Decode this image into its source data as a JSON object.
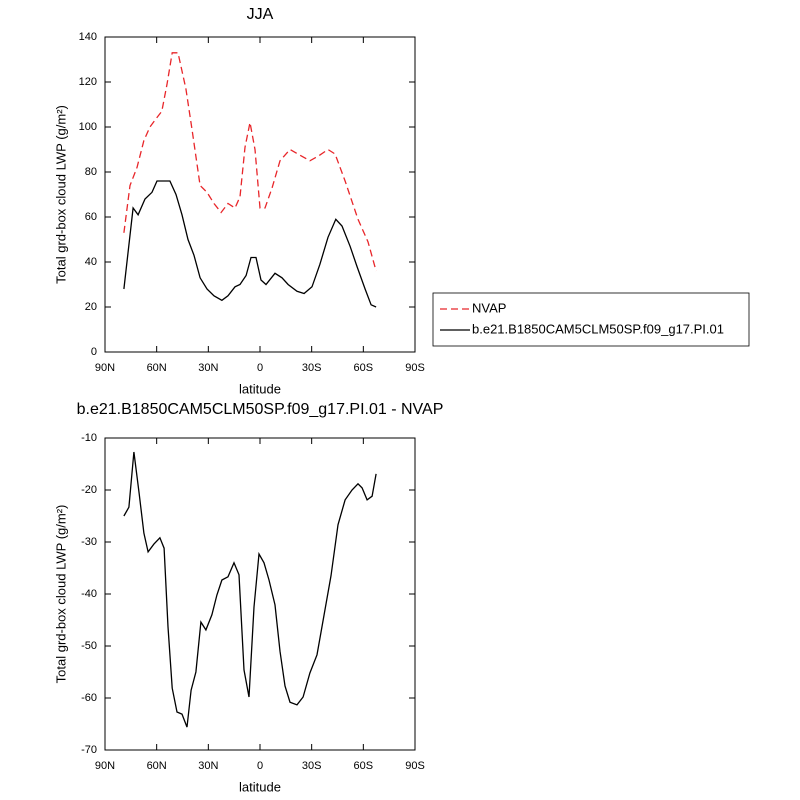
{
  "chart_data": [
    {
      "type": "line",
      "title": "JJA",
      "xlabel": "latitude",
      "ylabel": "Total grd-box cloud LWP (g/m²)",
      "xlim": [
        90,
        -90
      ],
      "xticks": [
        {
          "value": 90,
          "label": "90N"
        },
        {
          "value": 60,
          "label": "60N"
        },
        {
          "value": 30,
          "label": "30N"
        },
        0,
        {
          "value": -30,
          "label": "30S"
        },
        {
          "value": -60,
          "label": "60S"
        },
        {
          "value": -90,
          "label": "90S"
        }
      ],
      "ylim": [
        0,
        140
      ],
      "yticks": [
        0,
        20,
        40,
        60,
        80,
        100,
        120,
        140
      ],
      "legend": "outside right",
      "series": [
        {
          "name": "NVAP",
          "color": "#e8262a",
          "dashed": true,
          "x": [
            79,
            75.5,
            71.4,
            67.4,
            63.9,
            61,
            57,
            54,
            51,
            47.6,
            43,
            39.5,
            34.8,
            30.8,
            26.7,
            22.6,
            18.6,
            14.5,
            11.6,
            8.7,
            5.8,
            2.9,
            0,
            -2.9,
            -7,
            -11.6,
            -17.4,
            -22,
            -29,
            -33.7,
            -39.5,
            -43.6,
            -49.4,
            -56.9,
            -62.7,
            -67.4
          ],
          "values": [
            53,
            74,
            82,
            94,
            100,
            103,
            107,
            119,
            133,
            133,
            117,
            99,
            74,
            71,
            66,
            62,
            66,
            64,
            69,
            91,
            102,
            90,
            64,
            64,
            73,
            85,
            90,
            88,
            85,
            87,
            90,
            88,
            76,
            59,
            49,
            36
          ]
        },
        {
          "name": "b.e21.B1850CAM5CLM50SP.f09_g17.PI.01",
          "color": "#000000",
          "dashed": false,
          "x": [
            79,
            73.7,
            70.8,
            66.8,
            62.7,
            59.8,
            56.3,
            52.3,
            48.8,
            45.3,
            41.8,
            38.3,
            34.8,
            30.8,
            26.7,
            22.1,
            18.6,
            14.5,
            11.6,
            8.1,
            5.2,
            2.3,
            -0.6,
            -3.5,
            -8.7,
            -12.8,
            -16.3,
            -21.5,
            -25.6,
            -30.2,
            -34.8,
            -39.5,
            -44,
            -47.6,
            -52.3,
            -56.3,
            -61,
            -64.5,
            -67.4
          ],
          "values": [
            28,
            64,
            61,
            68,
            71,
            76,
            76,
            76,
            70,
            61,
            50,
            43,
            33,
            28,
            25,
            23,
            25,
            29,
            30,
            34,
            42,
            42,
            32,
            30,
            35,
            33,
            30,
            27,
            26,
            29,
            39,
            51,
            59,
            56,
            47,
            38,
            28,
            21,
            20
          ]
        }
      ]
    },
    {
      "type": "line",
      "title": "b.e21.B1850CAM5CLM50SP.f09_g17.PI.01 - NVAP",
      "xlabel": "latitude",
      "ylabel": "Total grd-box cloud LWP (g/m²)",
      "xlim": [
        90,
        -90
      ],
      "xticks": [
        {
          "value": 90,
          "label": "90N"
        },
        {
          "value": 60,
          "label": "60N"
        },
        {
          "value": 30,
          "label": "30N"
        },
        0,
        {
          "value": -30,
          "label": "30S"
        },
        {
          "value": -60,
          "label": "60S"
        },
        {
          "value": -90,
          "label": "90S"
        }
      ],
      "ylim": [
        -70,
        -10
      ],
      "yticks": [
        -70,
        -60,
        -50,
        -40,
        -30,
        -20,
        -10
      ],
      "series": [
        {
          "color": "#000000",
          "dashed": false,
          "x": [
            79,
            76.1,
            73.2,
            70.2,
            67.4,
            65,
            61.6,
            58.1,
            55.7,
            53.4,
            51,
            48.2,
            45.3,
            42.4,
            40,
            37.2,
            34.3,
            31.4,
            27.9,
            25,
            22.1,
            18.6,
            15.1,
            12.2,
            9.3,
            6.4,
            3.5,
            0.6,
            -2.3,
            -5.2,
            -8.7,
            -11.6,
            -14.5,
            -17.4,
            -21.5,
            -25,
            -29,
            -33.1,
            -37.2,
            -41.2,
            -45.3,
            -49.4,
            -53.4,
            -56.9,
            -59.3,
            -62.2,
            -65.1,
            -67.4
          ],
          "values": [
            -25,
            -23.3,
            -12.7,
            -20.6,
            -28.3,
            -31.9,
            -30.4,
            -29.2,
            -31.2,
            -46.3,
            -58.1,
            -62.7,
            -63.1,
            -65.6,
            -58.5,
            -55,
            -45.4,
            -46.9,
            -44,
            -40.2,
            -37.3,
            -36.7,
            -34,
            -36.3,
            -54.6,
            -59.8,
            -42.5,
            -32.3,
            -34,
            -37.3,
            -42.1,
            -51,
            -57.7,
            -60.8,
            -61.3,
            -59.8,
            -55.2,
            -51.7,
            -44,
            -36.5,
            -26.7,
            -21.9,
            -20,
            -18.8,
            -19.6,
            -21.9,
            -21.2,
            -16.9
          ]
        }
      ]
    }
  ]
}
